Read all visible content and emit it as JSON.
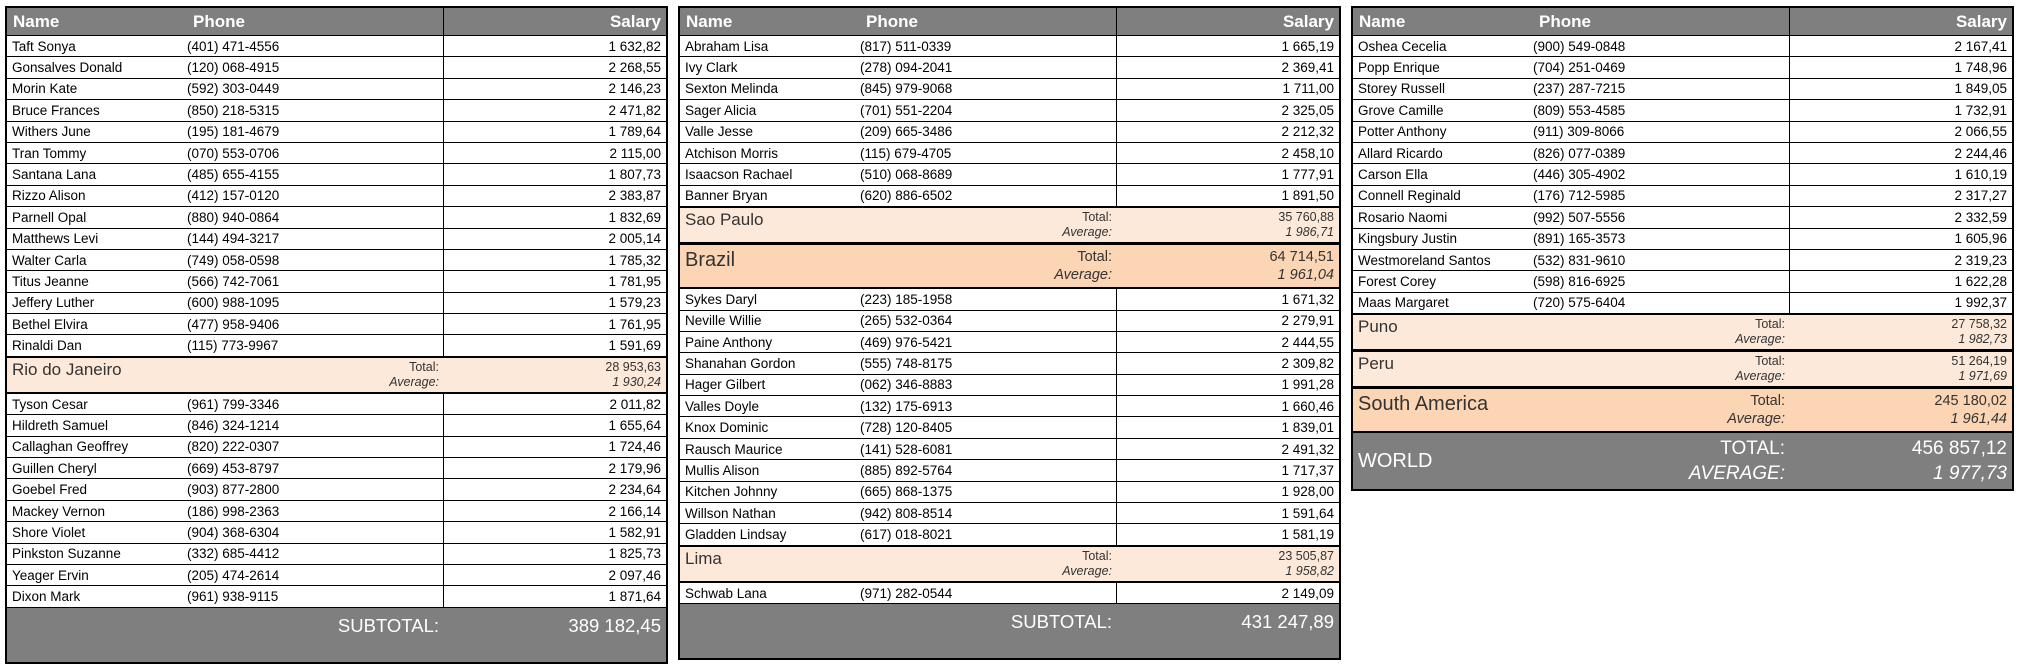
{
  "columns": {
    "name": "Name",
    "phone": "Phone",
    "salary": "Salary"
  },
  "labels": {
    "total": "Total:",
    "average": "Average:",
    "subtotal": "SUBTOTAL:",
    "world_total": "TOTAL:",
    "world_average": "AVERAGE:"
  },
  "colors": {
    "header_bg": "#7f7f7f",
    "header_text": "#ffffff",
    "group_light_bg": "#fde9d9",
    "group_dark_bg": "#fbd5b4",
    "band_bg": "#7f7f7f",
    "border": "#000000"
  },
  "tables": [
    {
      "sections": [
        {
          "type": "rows",
          "rows": [
            [
              "Taft Sonya",
              "(401) 471-4556",
              "1 632,82"
            ],
            [
              "Gonsalves Donald",
              "(120) 068-4915",
              "2 268,55"
            ],
            [
              "Morin Kate",
              "(592) 303-0449",
              "2 146,23"
            ],
            [
              "Bruce Frances",
              "(850) 218-5315",
              "2 471,82"
            ],
            [
              "Withers June",
              "(195) 181-4679",
              "1 789,64"
            ],
            [
              "Tran Tommy",
              "(070) 553-0706",
              "2 115,00"
            ],
            [
              "Santana Lana",
              "(485) 655-4155",
              "1 807,73"
            ],
            [
              "Rizzo Alison",
              "(412) 157-0120",
              "2 383,87"
            ],
            [
              "Parnell Opal",
              "(880) 940-0864",
              "1 832,69"
            ],
            [
              "Matthews Levi",
              "(144) 494-3217",
              "2 005,14"
            ],
            [
              "Walter Carla",
              "(749) 058-0598",
              "1 785,32"
            ],
            [
              "Titus Jeanne",
              "(566) 742-7061",
              "1 781,95"
            ],
            [
              "Jeffery Luther",
              "(600) 988-1095",
              "1 579,23"
            ],
            [
              "Bethel Elvira",
              "(477) 958-9406",
              "1 761,95"
            ],
            [
              "Rinaldi Dan",
              "(115) 773-9967",
              "1 591,69"
            ]
          ]
        },
        {
          "type": "group",
          "style": "light",
          "name": "Rio do Janeiro",
          "total": "28 953,63",
          "average": "1 930,24"
        },
        {
          "type": "rows",
          "rows": [
            [
              "Tyson Cesar",
              "(961) 799-3346",
              "2 011,82"
            ],
            [
              "Hildreth Samuel",
              "(846) 324-1214",
              "1 655,64"
            ],
            [
              "Callaghan Geoffrey",
              "(820) 222-0307",
              "1 724,46"
            ],
            [
              "Guillen Cheryl",
              "(669) 453-8797",
              "2 179,96"
            ],
            [
              "Goebel Fred",
              "(903) 877-2800",
              "2 234,64"
            ],
            [
              "Mackey Vernon",
              "(186) 998-2363",
              "2 166,14"
            ],
            [
              "Shore Violet",
              "(904) 368-6304",
              "1 582,91"
            ],
            [
              "Pinkston Suzanne",
              "(332) 685-4412",
              "1 825,73"
            ],
            [
              "Yeager Ervin",
              "(205) 474-2614",
              "2 097,46"
            ],
            [
              "Dixon Mark",
              "(961) 938-9115",
              "1 871,64"
            ]
          ]
        },
        {
          "type": "subtotal",
          "value": "389 182,45"
        }
      ]
    },
    {
      "sections": [
        {
          "type": "rows",
          "rows": [
            [
              "Abraham Lisa",
              "(817) 511-0339",
              "1 665,19"
            ],
            [
              "Ivy Clark",
              "(278) 094-2041",
              "2 369,41"
            ],
            [
              "Sexton Melinda",
              "(845) 979-9068",
              "1 711,00"
            ],
            [
              "Sager Alicia",
              "(701) 551-2204",
              "2 325,05"
            ],
            [
              "Valle Jesse",
              "(209) 665-3486",
              "2 212,32"
            ],
            [
              "Atchison Morris",
              "(115) 679-4705",
              "2 458,10"
            ],
            [
              "Isaacson Rachael",
              "(510) 068-8689",
              "1 777,91"
            ],
            [
              "Banner Bryan",
              "(620) 886-6502",
              "1 891,50"
            ]
          ]
        },
        {
          "type": "group",
          "style": "light",
          "name": "Sao Paulo",
          "total": "35 760,88",
          "average": "1 986,71"
        },
        {
          "type": "group",
          "style": "big",
          "name": "Brazil",
          "total": "64 714,51",
          "average": "1 961,04"
        },
        {
          "type": "rows",
          "rows": [
            [
              "Sykes Daryl",
              "(223) 185-1958",
              "1 671,32"
            ],
            [
              "Neville Willie",
              "(265) 532-0364",
              "2 279,91"
            ],
            [
              "Paine Anthony",
              "(469) 976-5421",
              "2 444,55"
            ],
            [
              "Shanahan Gordon",
              "(555) 748-8175",
              "2 309,82"
            ],
            [
              "Hager Gilbert",
              "(062) 346-8883",
              "1 991,28"
            ],
            [
              "Valles Doyle",
              "(132) 175-6913",
              "1 660,46"
            ],
            [
              "Knox Dominic",
              "(728) 120-8405",
              "1 839,01"
            ],
            [
              "Rausch Maurice",
              "(141) 528-6081",
              "2 491,32"
            ],
            [
              "Mullis Alison",
              "(885) 892-5764",
              "1 717,37"
            ],
            [
              "Kitchen Johnny",
              "(665) 868-1375",
              "1 928,00"
            ],
            [
              "Willson Nathan",
              "(942) 808-8514",
              "1 591,64"
            ],
            [
              "Gladden Lindsay",
              "(617) 018-8021",
              "1 581,19"
            ]
          ]
        },
        {
          "type": "group",
          "style": "light",
          "name": "Lima",
          "total": "23 505,87",
          "average": "1 958,82"
        },
        {
          "type": "rows",
          "rows": [
            [
              "Schwab Lana",
              "(971) 282-0544",
              "2 149,09"
            ]
          ]
        },
        {
          "type": "subtotal",
          "value": "431 247,89"
        }
      ]
    },
    {
      "sections": [
        {
          "type": "rows",
          "rows": [
            [
              "Oshea Cecelia",
              "(900) 549-0848",
              "2 167,41"
            ],
            [
              "Popp Enrique",
              "(704) 251-0469",
              "1 748,96"
            ],
            [
              "Storey Russell",
              "(237) 287-7215",
              "1 849,05"
            ],
            [
              "Grove Camille",
              "(809) 553-4585",
              "1 732,91"
            ],
            [
              "Potter Anthony",
              "(911) 309-8066",
              "2 066,55"
            ],
            [
              "Allard Ricardo",
              "(826) 077-0389",
              "2 244,46"
            ],
            [
              "Carson Ella",
              "(446) 305-4902",
              "1 610,19"
            ],
            [
              "Connell Reginald",
              "(176) 712-5985",
              "2 317,27"
            ],
            [
              "Rosario Naomi",
              "(992) 507-5556",
              "2 332,59"
            ],
            [
              "Kingsbury Justin",
              "(891) 165-3573",
              "1 605,96"
            ],
            [
              "Westmoreland Santos",
              "(532) 831-9610",
              "2 319,23"
            ],
            [
              "Forest Corey",
              "(598) 816-6925",
              "1 622,28"
            ],
            [
              "Maas Margaret",
              "(720) 575-6404",
              "1 992,37"
            ]
          ]
        },
        {
          "type": "group",
          "style": "light",
          "name": "Puno",
          "total": "27 758,32",
          "average": "1 982,73"
        },
        {
          "type": "group",
          "style": "light",
          "name": "Peru",
          "total": "51 264,19",
          "average": "1 971,69"
        },
        {
          "type": "group",
          "style": "big",
          "name": "South America",
          "total": "245 180,02",
          "average": "1 961,44"
        },
        {
          "type": "world",
          "name": "WORLD",
          "total": "456 857,12",
          "average": "1 977,73"
        }
      ]
    }
  ]
}
